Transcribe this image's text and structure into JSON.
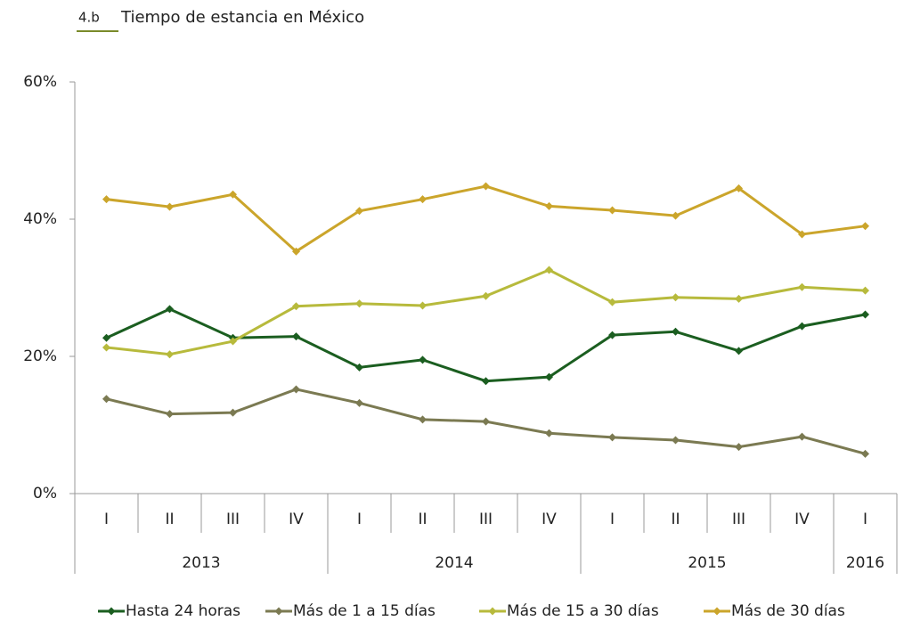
{
  "chart_data": {
    "type": "line",
    "title_number": "4.b",
    "title": "Tiempo de estancia en México",
    "categories": [
      "I",
      "II",
      "III",
      "IV",
      "I",
      "II",
      "III",
      "IV",
      "I",
      "II",
      "III",
      "IV",
      "I"
    ],
    "x_groups": [
      {
        "label": "2013",
        "count": 4
      },
      {
        "label": "2014",
        "count": 4
      },
      {
        "label": "2015",
        "count": 4
      },
      {
        "label": "2016",
        "count": 1
      }
    ],
    "ylim": [
      0,
      60
    ],
    "yticks": [
      {
        "value": 0,
        "label": "0%"
      },
      {
        "value": 20,
        "label": "20%"
      },
      {
        "value": 40,
        "label": "40%"
      },
      {
        "value": 60,
        "label": "60%"
      }
    ],
    "legend": "bottom",
    "series": [
      {
        "name": "Hasta 24 horas",
        "color": "#1b5e20",
        "values": [
          22.7,
          26.9,
          22.7,
          22.9,
          18.4,
          19.5,
          16.4,
          17.0,
          23.1,
          23.6,
          20.8,
          24.4,
          26.1
        ]
      },
      {
        "name": "Más de 1 a 15 días",
        "color": "#7b7a52",
        "values": [
          13.8,
          11.6,
          11.8,
          15.2,
          13.2,
          10.8,
          10.5,
          8.8,
          8.2,
          7.8,
          6.8,
          8.3,
          5.8
        ]
      },
      {
        "name": "Más de 15 a 30 días",
        "color": "#b7ba3c",
        "values": [
          21.3,
          20.3,
          22.2,
          27.3,
          27.7,
          27.4,
          28.8,
          32.6,
          27.9,
          28.6,
          28.4,
          30.1,
          29.6
        ]
      },
      {
        "name": "Más de 30 días",
        "color": "#cba52b",
        "values": [
          42.9,
          41.8,
          43.6,
          35.3,
          41.2,
          42.9,
          44.8,
          41.9,
          41.3,
          40.5,
          44.5,
          37.8,
          39.0
        ]
      }
    ]
  }
}
